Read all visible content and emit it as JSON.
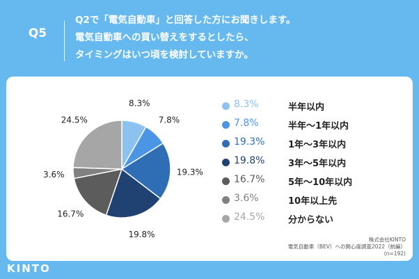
{
  "header": {
    "qnum": "Q5",
    "question_lines": [
      "Q2で「電気自動車」と回答した方にお聞きします。",
      "電気自動車への買い替えをするとしたら、",
      "タイミングはいつ頃を検討していますか。"
    ]
  },
  "chart_data": {
    "type": "pie",
    "title": "",
    "slices": [
      {
        "label": "半年以内",
        "value": 8.3,
        "display": "8.3%",
        "color": "#8cc2ef"
      },
      {
        "label": "半年〜1年以内",
        "value": 7.8,
        "display": "7.8%",
        "color": "#4a95e4"
      },
      {
        "label": "1年〜3年以内",
        "value": 19.3,
        "display": "19.3%",
        "color": "#2f6db4"
      },
      {
        "label": "3年〜5年以内",
        "value": 19.8,
        "display": "19.8%",
        "color": "#1f4273"
      },
      {
        "label": "5年〜10年以内",
        "value": 16.7,
        "display": "16.7%",
        "color": "#5c5c5c"
      },
      {
        "label": "10年以上先",
        "value": 3.6,
        "display": "3.6%",
        "color": "#808080"
      },
      {
        "label": "分からない",
        "value": 24.5,
        "display": "24.5%",
        "color": "#a6a6a6"
      }
    ]
  },
  "source": {
    "company": "株式会社KINTO",
    "survey": "電気自動車（BEV）への関心度調査2022（前編）",
    "n": "(n=192)"
  },
  "logo": {
    "text": "KINTO"
  }
}
